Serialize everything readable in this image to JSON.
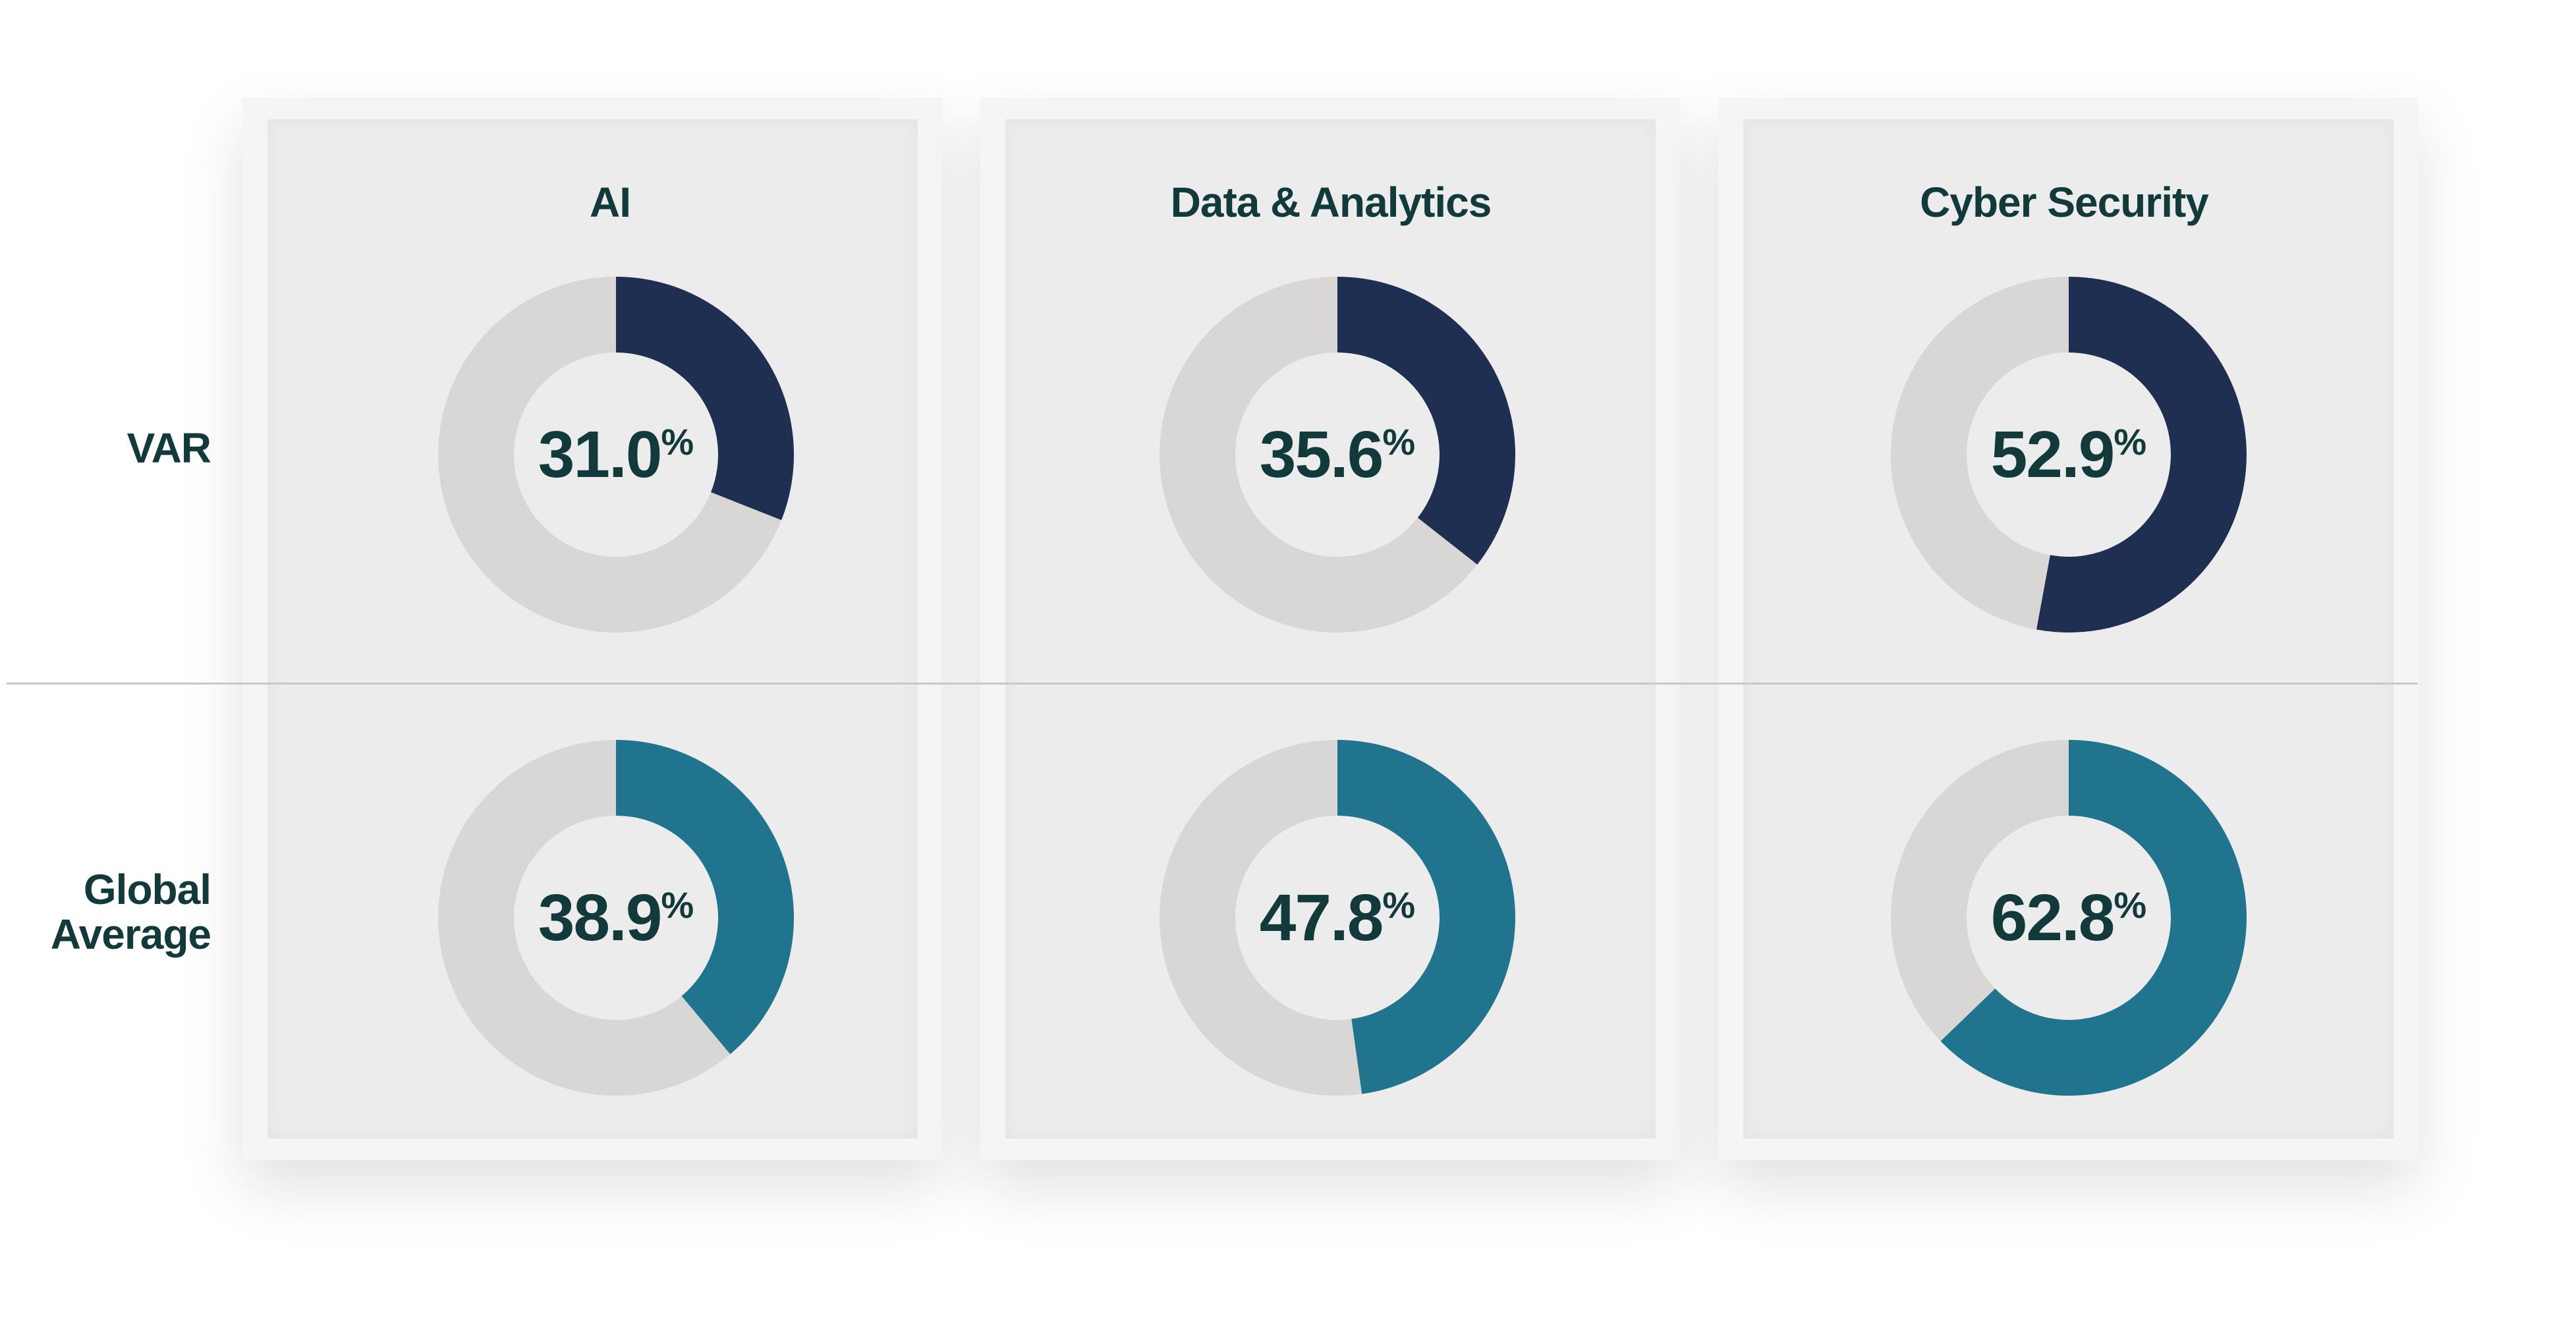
{
  "chart_data": {
    "type": "pie",
    "columns": [
      "AI",
      "Data & Analytics",
      "Cyber Security"
    ],
    "rows": [
      {
        "label_lines": [
          "VAR"
        ],
        "color": "#1f2f52",
        "values": [
          31.0,
          35.6,
          52.9
        ],
        "value_labels": [
          "31.0",
          "35.6",
          "52.9"
        ]
      },
      {
        "label_lines": [
          "Global",
          "Average"
        ],
        "color": "#20748d",
        "values": [
          38.9,
          47.8,
          62.8
        ],
        "value_labels": [
          "38.9",
          "47.8",
          "62.8"
        ]
      }
    ],
    "percent_symbol": "%",
    "track_color": "#d8d7d6"
  }
}
